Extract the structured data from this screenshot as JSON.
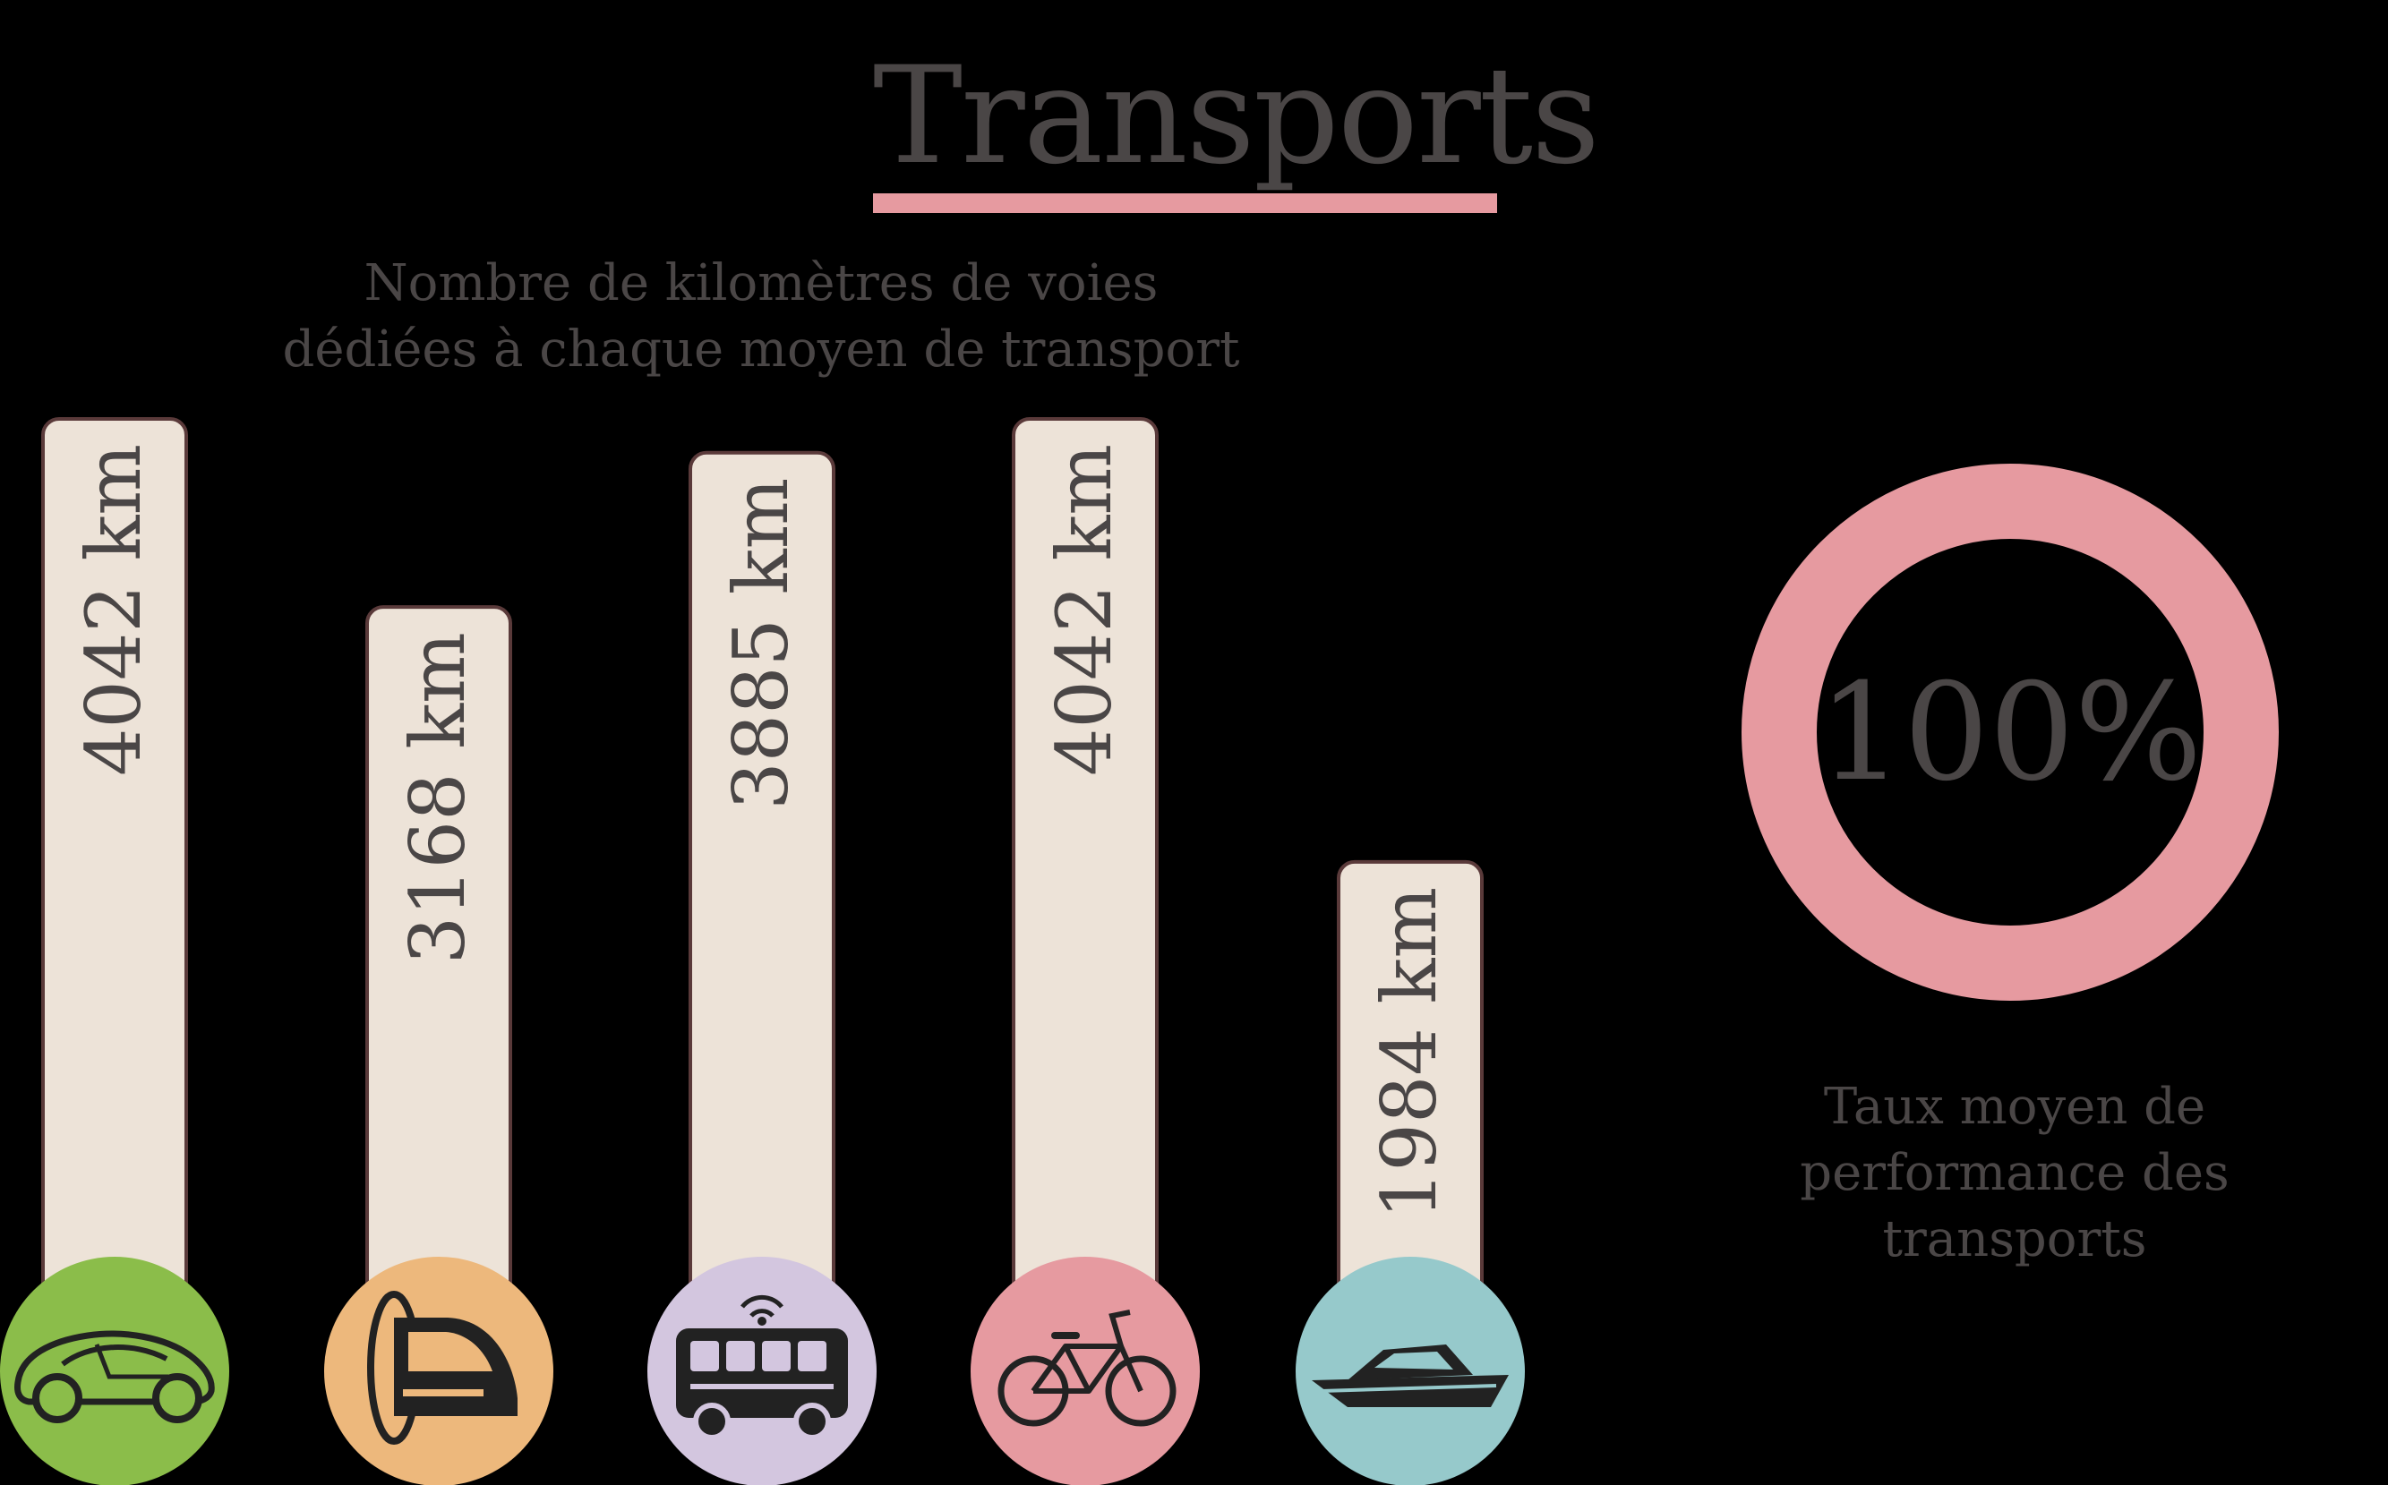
{
  "title": "Transports",
  "chart_data": {
    "type": "bar",
    "title": "Transports",
    "subtitle": "Nombre de kilomètres de voies dédiées à chaque moyen de transport",
    "categories": [
      "car-icon",
      "train-icon",
      "autonomous-bus-icon",
      "bicycle-icon",
      "boat-icon"
    ],
    "values": [
      4042,
      3168,
      3885,
      4042,
      1984
    ],
    "unit": "km",
    "value_labels": [
      "4042 km",
      "3168 km",
      "3885 km",
      "4042 km",
      "1984 km"
    ],
    "category_colors": [
      "#8bbd4a",
      "#edb87c",
      "#d3c6df",
      "#e69aa0",
      "#96c9cb"
    ],
    "bar_color": "#ede3d8",
    "bar_outline_color": "#5a3a3a",
    "ylim": [
      0,
      4042
    ]
  },
  "donut": {
    "value": 100,
    "label": "100%",
    "caption_lines": [
      "Taux moyen de",
      "performance des",
      "transports"
    ],
    "ring_color": "#e69aa0"
  },
  "colors": {
    "text": "#4a4646",
    "accent": "#e69aa0",
    "background": "#000000"
  }
}
